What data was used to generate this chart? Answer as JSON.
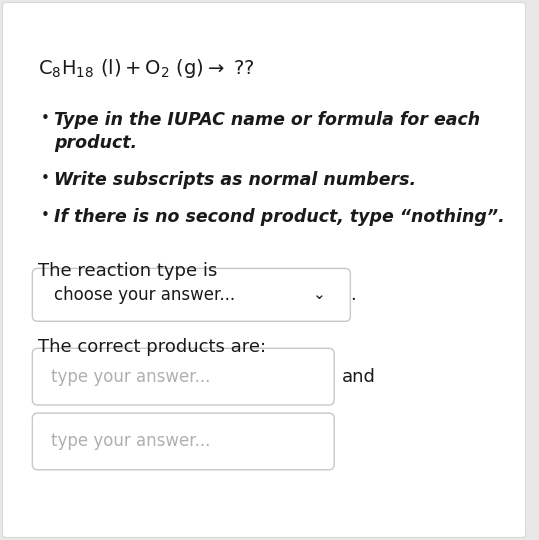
{
  "bg_color": "#e8e8e8",
  "card_color": "#ffffff",
  "text_color": "#1a1a1a",
  "placeholder_color": "#b0b0b0",
  "border_color": "#c8c8c8",
  "title_fontsize": 14,
  "bullet_fontsize": 12.5,
  "label_fontsize": 13,
  "placeholder_fontsize": 12,
  "reaction_type_label": "The reaction type is",
  "dropdown_text": "choose your answer...",
  "products_label": "The correct products are:",
  "input_placeholder1": "type your answer...",
  "and_text": "and",
  "input_placeholder2": "type your answer..."
}
